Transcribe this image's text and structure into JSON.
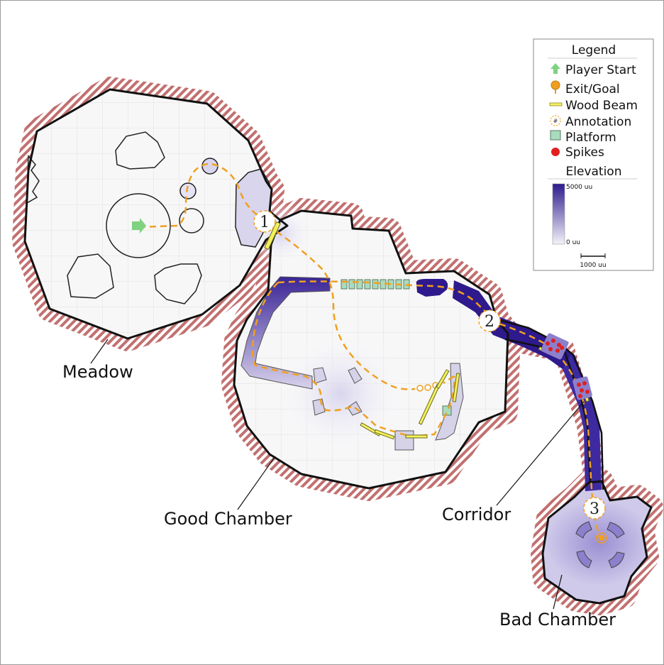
{
  "regions": [
    {
      "id": "meadow",
      "label": "Meadow"
    },
    {
      "id": "good-chamber",
      "label": "Good Chamber"
    },
    {
      "id": "corridor",
      "label": "Corridor"
    },
    {
      "id": "bad-chamber",
      "label": "Bad Chamber"
    }
  ],
  "annotations": [
    "1",
    "2",
    "3"
  ],
  "legend": {
    "title": "Legend",
    "items": [
      {
        "icon": "player-start-arrow-icon",
        "label": "Player Start"
      },
      {
        "icon": "exit-goal-pin-icon",
        "label": "Exit/Goal"
      },
      {
        "icon": "wood-beam-icon",
        "label": "Wood Beam"
      },
      {
        "icon": "annotation-marker-icon",
        "symbol": "#",
        "label": "Annotation"
      },
      {
        "icon": "platform-icon",
        "label": "Platform"
      },
      {
        "icon": "spikes-icon",
        "label": "Spikes"
      }
    ],
    "elevation": {
      "title": "Elevation",
      "max_label": "5000 uu",
      "min_label": "0 uu"
    },
    "scale_label": "1000 uu"
  },
  "colors": {
    "wall": "#111111",
    "hatch": "#b35a5a",
    "path": "#f0a020",
    "elevation_high": "#2e1a8c",
    "elevation_low": "#f4f2fa",
    "platform": "#a8dcbc",
    "beam": "#f4f05a",
    "spike": "#e02020",
    "start": "#7fd27f"
  }
}
